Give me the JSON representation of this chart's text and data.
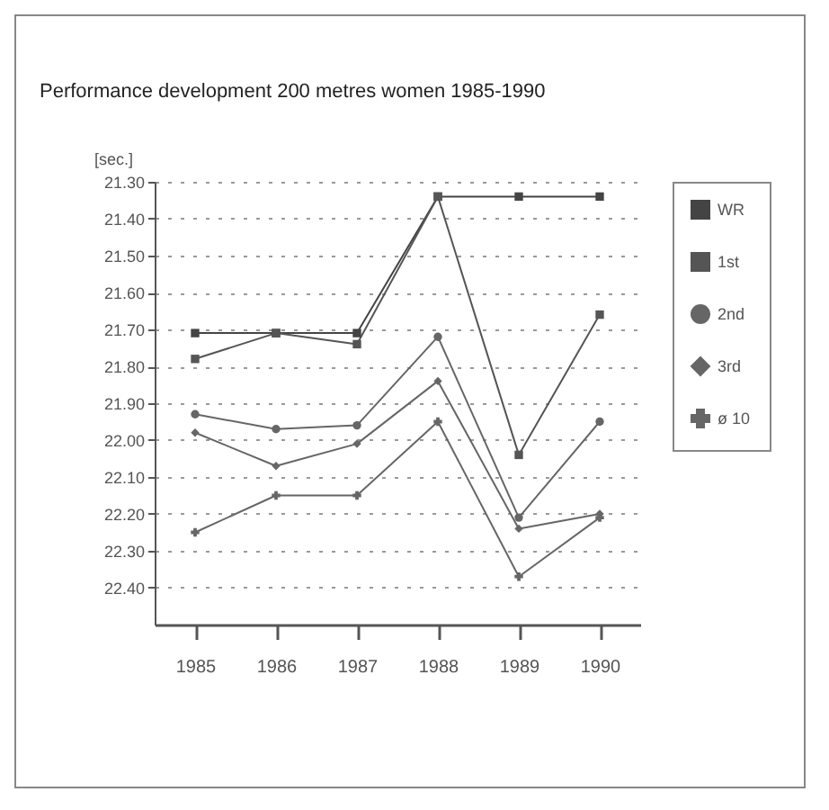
{
  "chart_data": {
    "type": "line",
    "title": "Performance development 200 metres women 1985-1990",
    "ylabel": "[sec.]",
    "categories": [
      "1985",
      "1986",
      "1987",
      "1988",
      "1989",
      "1990"
    ],
    "ylim": [
      22.5,
      21.3
    ],
    "yticks": [
      {
        "value": 21.3,
        "label": "21.30"
      },
      {
        "value": 21.4,
        "label": "21.40"
      },
      {
        "value": 21.5,
        "label": "21.50"
      },
      {
        "value": 21.6,
        "label": "21.60"
      },
      {
        "value": 21.7,
        "label": "21.70"
      },
      {
        "value": 21.8,
        "label": "21.80"
      },
      {
        "value": 21.9,
        "label": "21.90"
      },
      {
        "value": 22.0,
        "label": "22.00"
      },
      {
        "value": 22.1,
        "label": "22.10"
      },
      {
        "value": 22.2,
        "label": "22.20"
      },
      {
        "value": 22.3,
        "label": "22.30"
      },
      {
        "value": 22.4,
        "label": "22.40"
      }
    ],
    "grid": "y",
    "legend": "right",
    "line_style": "solid",
    "series": [
      {
        "name": "WR",
        "color": "#444444",
        "marker": "square",
        "values": [
          21.71,
          21.71,
          21.71,
          21.34,
          21.34,
          21.34
        ]
      },
      {
        "name": "1st",
        "color": "#555555",
        "marker": "square",
        "values": [
          21.78,
          21.71,
          21.74,
          21.34,
          22.04,
          21.66
        ]
      },
      {
        "name": "2nd",
        "color": "#666666",
        "marker": "circle",
        "values": [
          21.93,
          21.97,
          21.96,
          21.72,
          22.21,
          21.95
        ]
      },
      {
        "name": "3rd",
        "color": "#666666",
        "marker": "diamond",
        "values": [
          21.98,
          22.07,
          22.01,
          21.84,
          22.24,
          22.2
        ]
      },
      {
        "name": "ø 10",
        "color": "#666666",
        "marker": "cross",
        "values": [
          22.25,
          22.15,
          22.15,
          21.95,
          22.37,
          22.21
        ]
      }
    ]
  }
}
